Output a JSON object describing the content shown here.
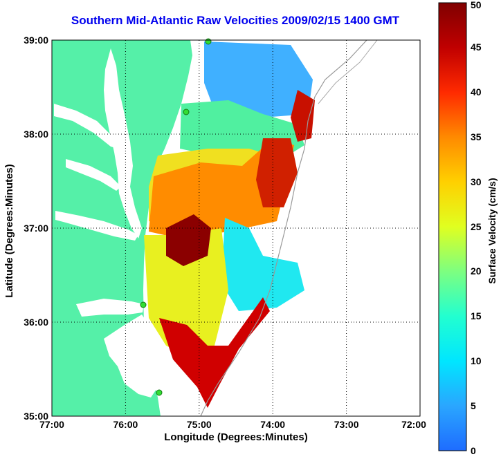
{
  "title": "Southern Mid-Atlantic Raw Velocities 2009/02/15 1400 GMT",
  "xlabel": "Longitude (Degrees:Minutes)",
  "ylabel": "Latitude (Degrees:Minutes)",
  "colorbar": {
    "label": "Surface Velocity (cm/s)",
    "ticks": [
      "0",
      "5",
      "10",
      "15",
      "20",
      "25",
      "30",
      "35",
      "40",
      "45",
      "50"
    ],
    "range": [
      0,
      50
    ]
  },
  "map": {
    "lon_ticks": [
      "77:00",
      "76:00",
      "75:00",
      "74:00",
      "73:00",
      "72:00"
    ],
    "lat_ticks": [
      "35:00",
      "36:00",
      "37:00",
      "38:00",
      "39:00"
    ],
    "lon_range": [
      -77,
      -72
    ],
    "lat_range": [
      35,
      39
    ],
    "grid": true
  },
  "colors": {
    "title": "#0000ee",
    "land": "#55f0a8",
    "water": "#ffffff",
    "vectors": "#000000",
    "radar_sites": "#33dd33"
  }
}
